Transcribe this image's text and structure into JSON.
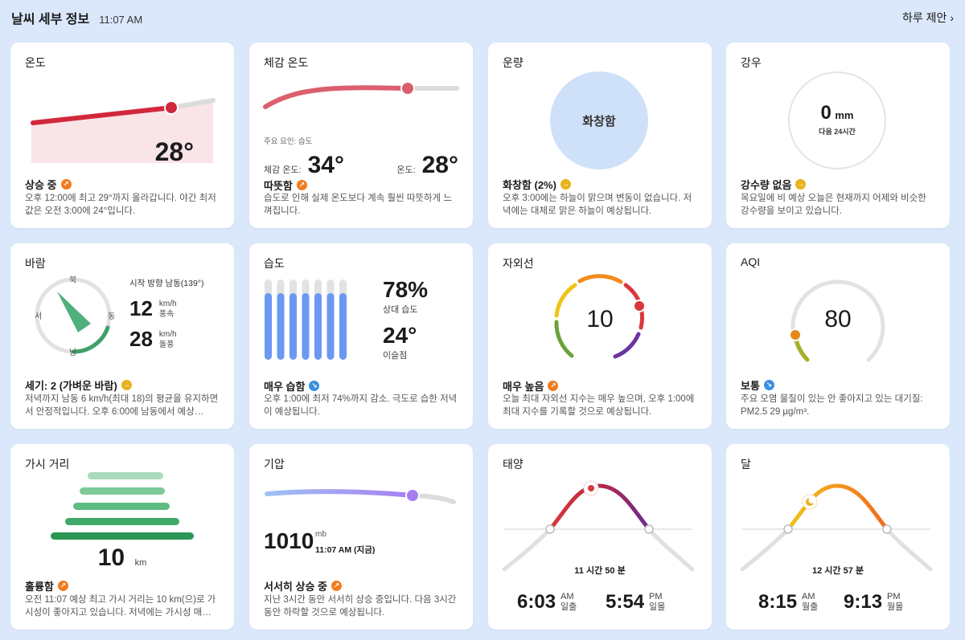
{
  "header": {
    "title": "날씨 세부 정보",
    "time": "11:07 AM",
    "daily_label": "하루 제안",
    "daily_chevron": "›"
  },
  "cards": {
    "temp": {
      "title": "온도",
      "value": "28°",
      "summary": "상승 중",
      "desc": "오후 12:00에 최고 29°까지 올라갑니다. 야간 최저값은 오전 3:00에 24°입니다.",
      "level": 0.78
    },
    "feels": {
      "title": "체감 온도",
      "factor": "주요 요인: 습도",
      "feels_label": "체감 온도:",
      "feels_value": "34°",
      "temp_label": "온도:",
      "temp_value": "28°",
      "summary": "따뜻함",
      "desc": "습도로 인해 실제 온도보다 계속 훨씬 따뜻하게 느껴집니다.",
      "level": 0.74
    },
    "cloud": {
      "title": "운량",
      "center": "화창함",
      "summary": "화창함 (2%)",
      "desc": "오후 3:00에는 하늘이 맑으며 변동이 없습니다. 저녁에는 대체로 맑은 하늘이 예상됩니다."
    },
    "rain": {
      "title": "강우",
      "value": "0",
      "unit": "mm",
      "sub": "다음 24시간",
      "summary": "강수량 없음",
      "desc": "목요일에 비 예상 오늘은 현재까지 어제와 비슷한 강수량을 보이고 있습니다."
    },
    "wind": {
      "title": "바람",
      "dir_text": "시작 방향 남동(139°)",
      "n": "북",
      "s": "남",
      "e": "동",
      "w": "서",
      "speed": "12",
      "speed_unit": "km/h",
      "speed_label": "풍속",
      "gust": "28",
      "gust_unit": "km/h",
      "gust_label": "돌풍",
      "summary": "세기: 2 (가벼운 바람)",
      "desc": "저녁까지 남동 6 km/h(최대 18)의 평균을 유지하면서 안정적입니다. 오후 6:00에 남동에서 예상…",
      "direction_deg": 139
    },
    "humid": {
      "title": "습도",
      "value": "78%",
      "value_label": "상대 습도",
      "dew": "24°",
      "dew_label": "이슬점",
      "summary": "매우 습함",
      "desc": "오후 1:00에 최저 74%까지 감소. 극도로 습한 저녁이 예상됩니다.",
      "bars": [
        0.83,
        0.83,
        0.83,
        0.83,
        0.83,
        0.83,
        0.83
      ]
    },
    "uv": {
      "title": "자외선",
      "value": "10",
      "summary": "매우 높음",
      "desc": "오늘 최대 자외선 지수는 매우 높으며, 오후 1:00에 최대 지수를 기록할 것으로 예상됩니다."
    },
    "aqi": {
      "title": "AQI",
      "value": "80",
      "summary": "보통",
      "desc": "주요 오염 물질이 있는 안 좋아지고 있는 대기질: PM2.5 29 µg/m³."
    },
    "vis": {
      "title": "가시 거리",
      "value": "10",
      "unit": "km",
      "summary": "훌륭함",
      "desc": "오전 11:07 예상 최고 가시 거리는 10 km(으)로 가시성이 좋아지고 있습니다. 저녁에는 가시성 매…"
    },
    "press": {
      "title": "기압",
      "value": "1010",
      "unit": "mb",
      "time": "11:07 AM (지금)",
      "summary": "서서히 상승 중",
      "desc": "지난 3시간 동안 서서히 상승 중입니다. 다음 3시간 동안 하락할 것으로 예상됩니다.",
      "level": 0.75
    },
    "sun": {
      "title": "태양",
      "duration": "11 시간 50 분",
      "rise": "6:03",
      "rise_ampm": "AM",
      "rise_label": "일출",
      "set": "5:54",
      "set_ampm": "PM",
      "set_label": "일몰"
    },
    "moon": {
      "title": "달",
      "duration": "12 시간 57 분",
      "rise": "8:15",
      "rise_ampm": "AM",
      "rise_label": "월출",
      "set": "9:13",
      "set_ampm": "PM",
      "set_label": "월몰"
    }
  },
  "colors": {
    "accent_red": "#d2283c",
    "orange": "#f07c21",
    "blue": "#6b98f2",
    "green": "#3fa06a"
  }
}
